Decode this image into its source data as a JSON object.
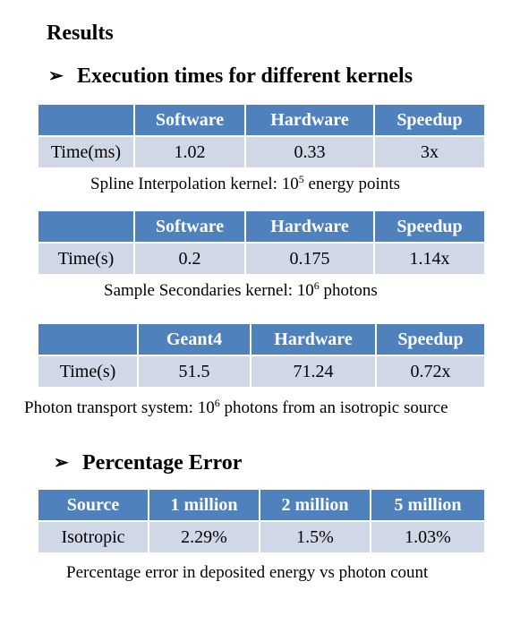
{
  "title": "Results",
  "section1": {
    "bullet": "➢",
    "heading": "Execution times for different kernels"
  },
  "table1": {
    "headers": [
      "",
      "Software",
      "Hardware",
      "Speedup"
    ],
    "row": [
      "Time(ms)",
      "1.02",
      "0.33",
      "3x"
    ],
    "caption_pre": "Spline Interpolation kernel: 10",
    "caption_sup": "5",
    "caption_post": " energy points"
  },
  "table2": {
    "headers": [
      "",
      "Software",
      "Hardware",
      "Speedup"
    ],
    "row": [
      "Time(s)",
      "0.2",
      "0.175",
      "1.14x"
    ],
    "caption_pre": "Sample Secondaries kernel: 10",
    "caption_sup": "6",
    "caption_post": " photons"
  },
  "table3": {
    "headers": [
      "",
      "Geant4",
      "Hardware",
      "Speedup"
    ],
    "row": [
      "Time(s)",
      "51.5",
      "71.24",
      "0.72x"
    ],
    "caption_pre": "Photon transport system: 10",
    "caption_sup": "6",
    "caption_post": " photons from an isotropic source"
  },
  "section2": {
    "bullet": "➢",
    "heading": "Percentage Error"
  },
  "table4": {
    "headers": [
      "Source",
      "1 million",
      "2 million",
      "5 million"
    ],
    "row": [
      "Isotropic",
      "2.29%",
      "1.5%",
      "1.03%"
    ],
    "caption": "Percentage error in deposited energy vs photon count"
  },
  "colors": {
    "header_bg": "#4f81bd",
    "row_bg": "#d0d8e8"
  }
}
